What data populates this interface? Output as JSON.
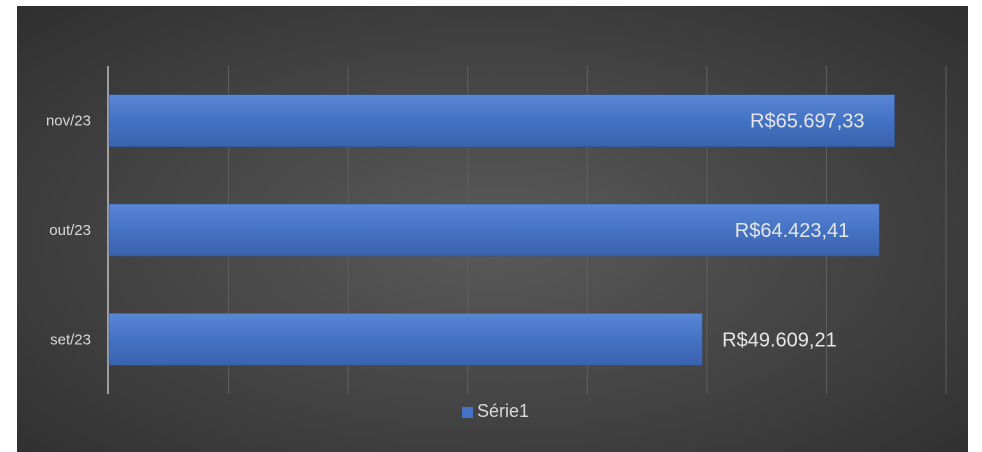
{
  "chart_data": {
    "type": "bar",
    "orientation": "horizontal",
    "categories": [
      "nov/23",
      "out/23",
      "set/23"
    ],
    "series": [
      {
        "name": "Série1",
        "values": [
          65697.33,
          64423.41,
          49609.21
        ],
        "labels": [
          "R$65.697,33",
          "R$64.423,41",
          "R$49.609,21"
        ],
        "color": "#4472c4"
      }
    ],
    "xlim": [
      0,
      70000
    ],
    "grid": true,
    "legend_position": "bottom",
    "background": "#404040",
    "gridline_color": "#5f5f5f"
  }
}
